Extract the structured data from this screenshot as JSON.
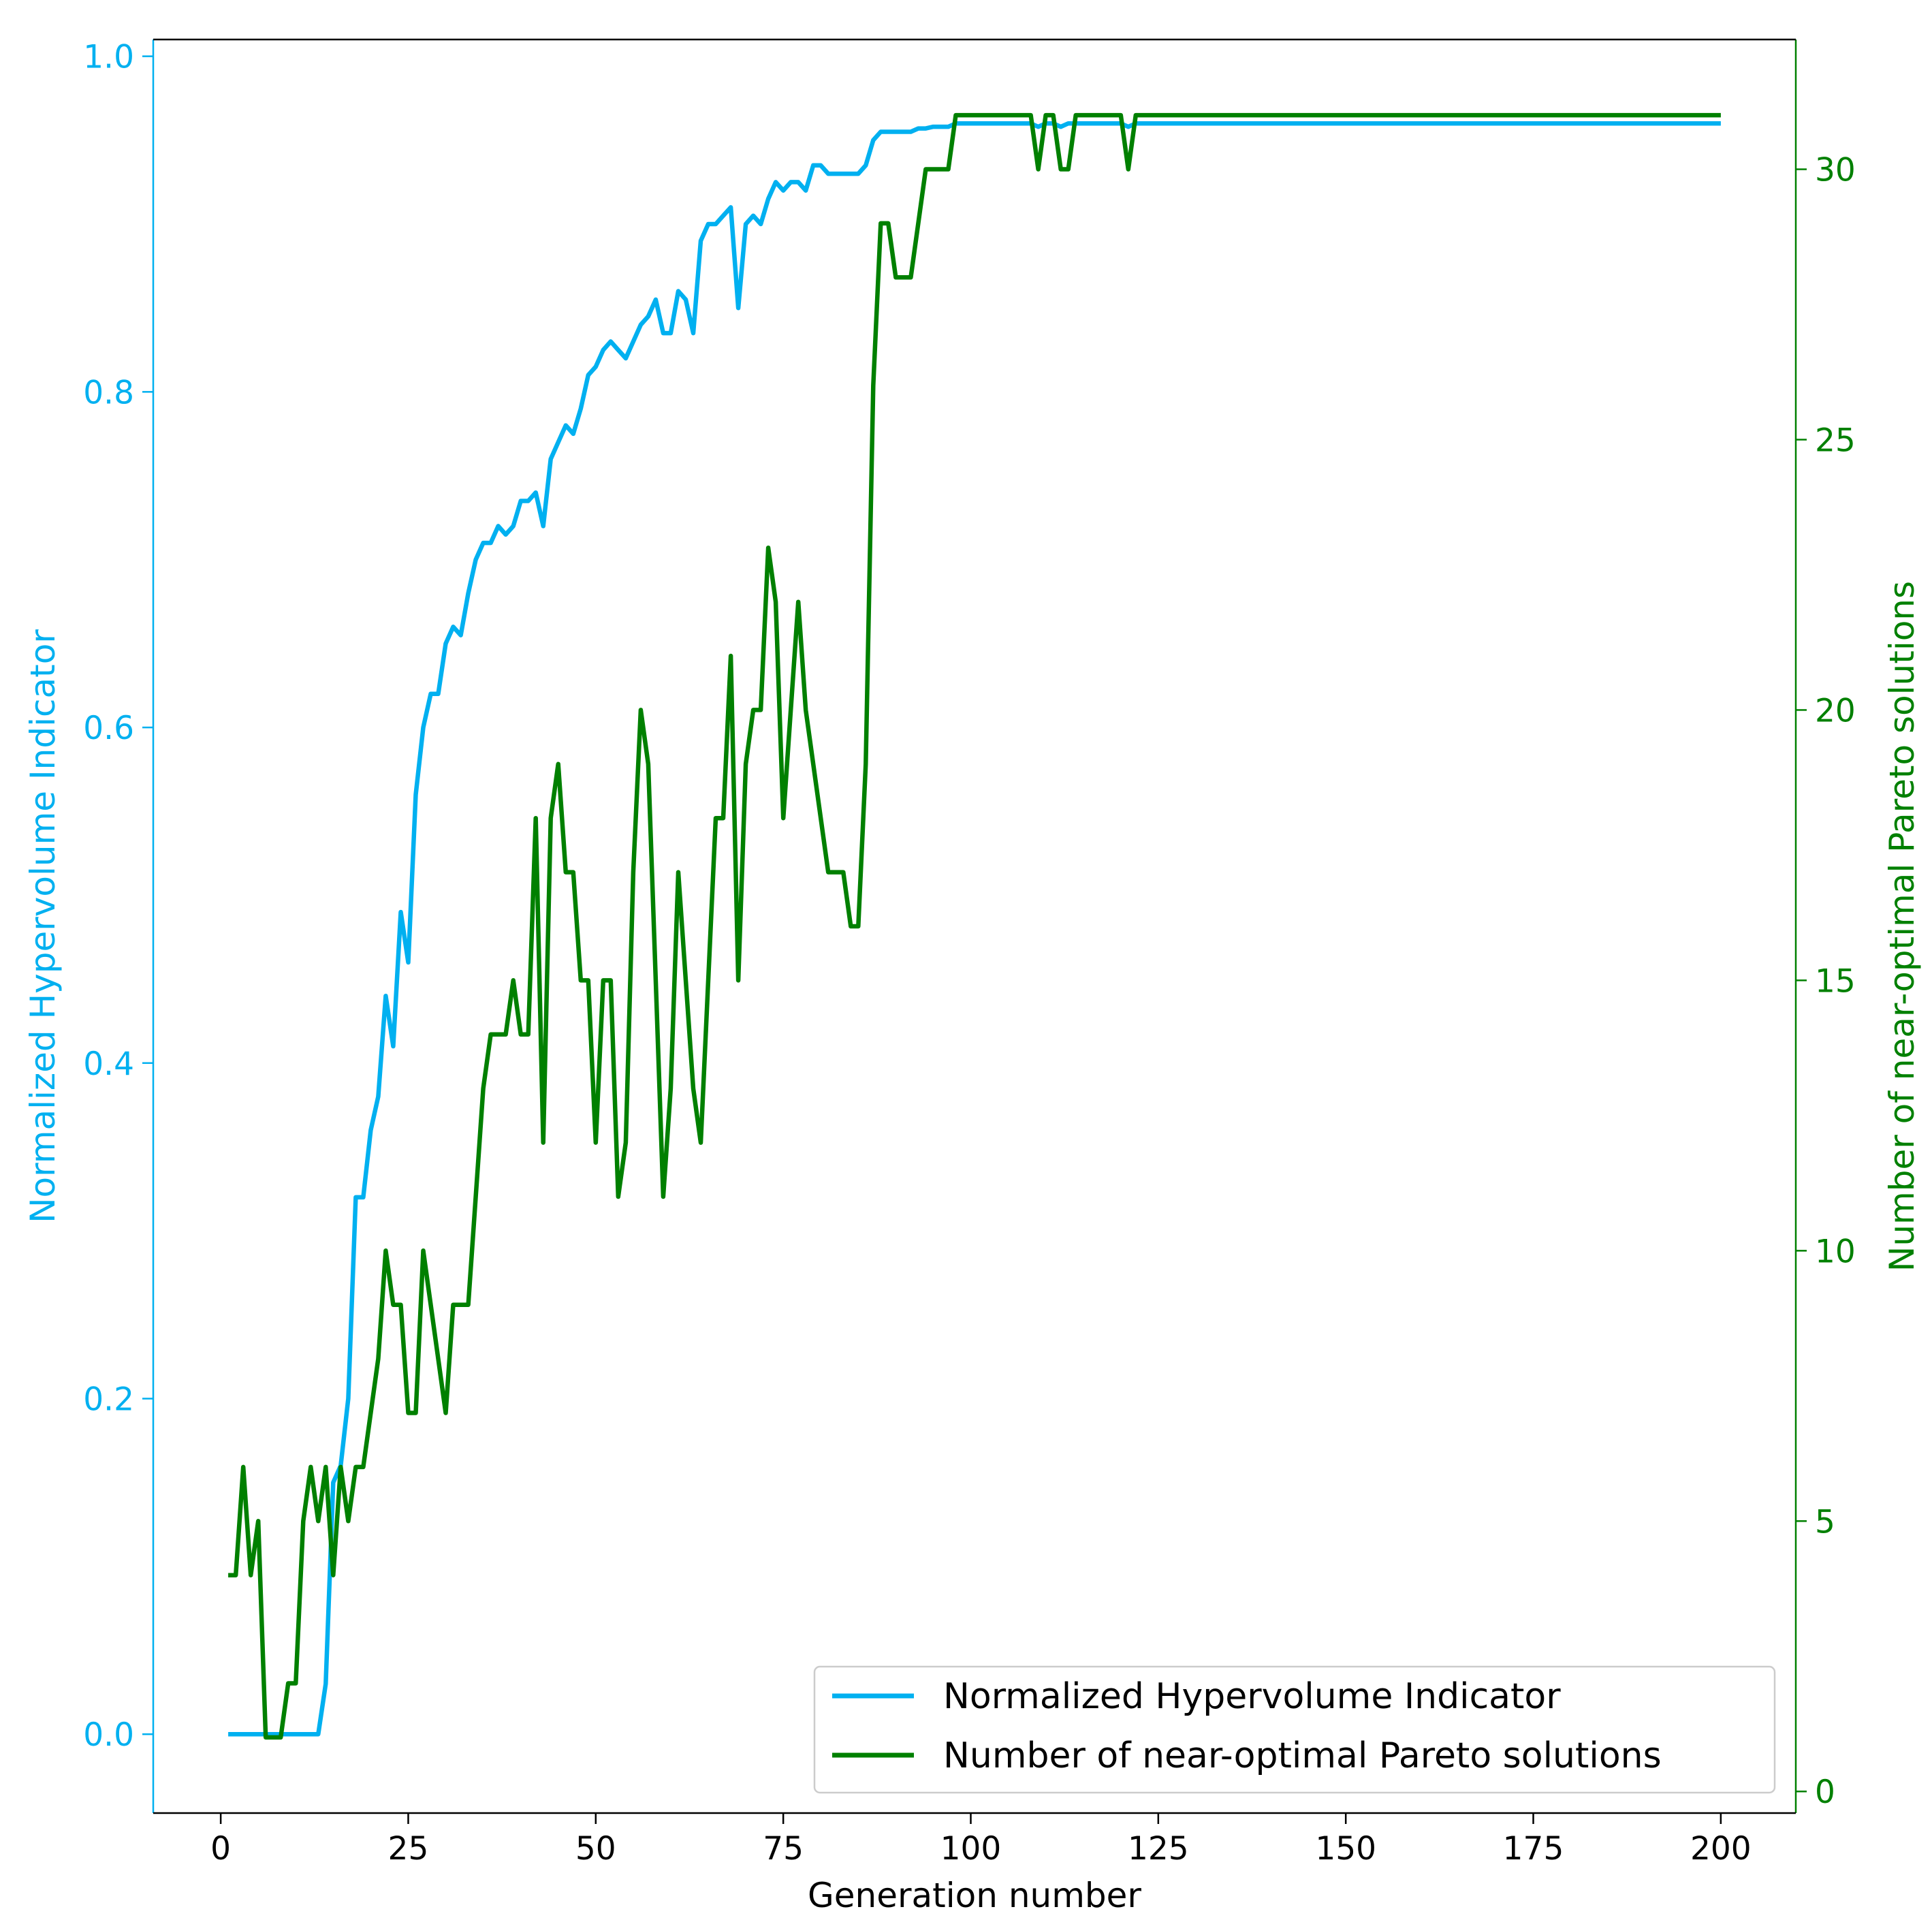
{
  "chart_data": {
    "type": "line",
    "xlabel": "Generation number",
    "ylabel_left": "Normalized Hypervolume Indicator",
    "ylabel_right": "Number of near-optimal Pareto solutions",
    "xlim": [
      -9,
      210
    ],
    "ylim_left": [
      -0.047,
      1.01
    ],
    "ylim_right": [
      -0.4,
      32.4
    ],
    "xticks": [
      0,
      25,
      50,
      75,
      100,
      125,
      150,
      175,
      200
    ],
    "yticks_left": [
      "0.0",
      "0.2",
      "0.4",
      "0.6",
      "0.8",
      "1.0"
    ],
    "yticks_left_values": [
      0.0,
      0.2,
      0.4,
      0.6,
      0.8,
      1.0
    ],
    "yticks_right": [
      "0",
      "5",
      "10",
      "15",
      "20",
      "25",
      "30"
    ],
    "yticks_right_values": [
      0,
      5,
      10,
      15,
      20,
      25,
      30
    ],
    "grid": false,
    "legend_position": "bottom-right",
    "series": [
      {
        "name": "Normalized Hypervolume Indicator",
        "axis": "left",
        "color": "#00b0f0",
        "points": [
          [
            1,
            0
          ],
          [
            13,
            0
          ],
          [
            14,
            0.03
          ],
          [
            15,
            0.15
          ],
          [
            16,
            0.16
          ],
          [
            17,
            0.2
          ],
          [
            18,
            0.32
          ],
          [
            19,
            0.32
          ],
          [
            20,
            0.36
          ],
          [
            21,
            0.38
          ],
          [
            22,
            0.44
          ],
          [
            23,
            0.41
          ],
          [
            24,
            0.49
          ],
          [
            25,
            0.46
          ],
          [
            26,
            0.56
          ],
          [
            27,
            0.6
          ],
          [
            28,
            0.62
          ],
          [
            29,
            0.62
          ],
          [
            30,
            0.65
          ],
          [
            31,
            0.66
          ],
          [
            32,
            0.655
          ],
          [
            33,
            0.68
          ],
          [
            34,
            0.7
          ],
          [
            35,
            0.71
          ],
          [
            36,
            0.71
          ],
          [
            37,
            0.72
          ],
          [
            38,
            0.715
          ],
          [
            39,
            0.72
          ],
          [
            40,
            0.735
          ],
          [
            41,
            0.735
          ],
          [
            42,
            0.74
          ],
          [
            43,
            0.72
          ],
          [
            44,
            0.76
          ],
          [
            45,
            0.77
          ],
          [
            46,
            0.78
          ],
          [
            47,
            0.775
          ],
          [
            48,
            0.79
          ],
          [
            49,
            0.81
          ],
          [
            50,
            0.815
          ],
          [
            51,
            0.825
          ],
          [
            52,
            0.83
          ],
          [
            53,
            0.825
          ],
          [
            54,
            0.82
          ],
          [
            55,
            0.83
          ],
          [
            56,
            0.84
          ],
          [
            57,
            0.845
          ],
          [
            58,
            0.855
          ],
          [
            59,
            0.835
          ],
          [
            60,
            0.835
          ],
          [
            61,
            0.86
          ],
          [
            62,
            0.855
          ],
          [
            63,
            0.835
          ],
          [
            64,
            0.89
          ],
          [
            65,
            0.9
          ],
          [
            66,
            0.9
          ],
          [
            67,
            0.905
          ],
          [
            68,
            0.91
          ],
          [
            69,
            0.85
          ],
          [
            70,
            0.9
          ],
          [
            71,
            0.905
          ],
          [
            72,
            0.9
          ],
          [
            73,
            0.915
          ],
          [
            74,
            0.925
          ],
          [
            75,
            0.92
          ],
          [
            76,
            0.925
          ],
          [
            77,
            0.925
          ],
          [
            78,
            0.92
          ],
          [
            79,
            0.935
          ],
          [
            80,
            0.935
          ],
          [
            81,
            0.93
          ],
          [
            82,
            0.93
          ],
          [
            83,
            0.93
          ],
          [
            84,
            0.93
          ],
          [
            85,
            0.93
          ],
          [
            86,
            0.935
          ],
          [
            87,
            0.95
          ],
          [
            88,
            0.955
          ],
          [
            89,
            0.955
          ],
          [
            90,
            0.955
          ],
          [
            91,
            0.955
          ],
          [
            92,
            0.955
          ],
          [
            93,
            0.957
          ],
          [
            94,
            0.957
          ],
          [
            95,
            0.958
          ],
          [
            96,
            0.958
          ],
          [
            97,
            0.958
          ],
          [
            98,
            0.96
          ],
          [
            108,
            0.96
          ],
          [
            109,
            0.958
          ],
          [
            110,
            0.96
          ],
          [
            111,
            0.96
          ],
          [
            112,
            0.958
          ],
          [
            113,
            0.96
          ],
          [
            120,
            0.96
          ],
          [
            121,
            0.958
          ],
          [
            122,
            0.96
          ],
          [
            200,
            0.96
          ]
        ]
      },
      {
        "name": "Number of near-optimal Pareto solutions",
        "axis": "right",
        "color": "#008000",
        "points": [
          [
            1,
            4
          ],
          [
            2,
            4
          ],
          [
            3,
            6
          ],
          [
            4,
            4
          ],
          [
            5,
            5
          ],
          [
            6,
            1
          ],
          [
            8,
            1
          ],
          [
            9,
            2
          ],
          [
            10,
            2
          ],
          [
            11,
            5
          ],
          [
            12,
            6
          ],
          [
            13,
            5
          ],
          [
            14,
            6
          ],
          [
            15,
            4
          ],
          [
            16,
            6
          ],
          [
            17,
            5
          ],
          [
            18,
            6
          ],
          [
            19,
            6
          ],
          [
            20,
            7
          ],
          [
            21,
            8
          ],
          [
            22,
            10
          ],
          [
            23,
            9
          ],
          [
            24,
            9
          ],
          [
            25,
            7
          ],
          [
            26,
            7
          ],
          [
            27,
            10
          ],
          [
            28,
            9
          ],
          [
            29,
            8
          ],
          [
            30,
            7
          ],
          [
            31,
            9
          ],
          [
            32,
            9
          ],
          [
            33,
            9
          ],
          [
            34,
            11
          ],
          [
            35,
            13
          ],
          [
            36,
            14
          ],
          [
            37,
            14
          ],
          [
            38,
            14
          ],
          [
            39,
            15
          ],
          [
            40,
            14
          ],
          [
            41,
            14
          ],
          [
            42,
            18
          ],
          [
            43,
            12
          ],
          [
            44,
            18
          ],
          [
            45,
            19
          ],
          [
            46,
            17
          ],
          [
            47,
            17
          ],
          [
            48,
            15
          ],
          [
            49,
            15
          ],
          [
            50,
            12
          ],
          [
            51,
            15
          ],
          [
            52,
            15
          ],
          [
            53,
            11
          ],
          [
            54,
            12
          ],
          [
            55,
            17
          ],
          [
            56,
            20
          ],
          [
            57,
            19
          ],
          [
            58,
            15
          ],
          [
            59,
            11
          ],
          [
            60,
            13
          ],
          [
            61,
            17
          ],
          [
            62,
            15
          ],
          [
            63,
            13
          ],
          [
            64,
            12
          ],
          [
            65,
            15
          ],
          [
            66,
            18
          ],
          [
            67,
            18
          ],
          [
            68,
            21
          ],
          [
            69,
            15
          ],
          [
            70,
            19
          ],
          [
            71,
            20
          ],
          [
            72,
            20
          ],
          [
            73,
            23
          ],
          [
            74,
            22
          ],
          [
            75,
            18
          ],
          [
            76,
            20
          ],
          [
            77,
            22
          ],
          [
            78,
            20
          ],
          [
            79,
            19
          ],
          [
            80,
            18
          ],
          [
            81,
            17
          ],
          [
            82,
            17
          ],
          [
            83,
            17
          ],
          [
            84,
            16
          ],
          [
            85,
            16
          ],
          [
            86,
            19
          ],
          [
            87,
            26
          ],
          [
            88,
            29
          ],
          [
            89,
            29
          ],
          [
            90,
            28
          ],
          [
            91,
            28
          ],
          [
            92,
            28
          ],
          [
            93,
            29
          ],
          [
            94,
            30
          ],
          [
            95,
            30
          ],
          [
            96,
            30
          ],
          [
            97,
            30
          ],
          [
            98,
            31
          ],
          [
            108,
            31
          ],
          [
            109,
            30
          ],
          [
            110,
            31
          ],
          [
            111,
            31
          ],
          [
            112,
            30
          ],
          [
            113,
            30
          ],
          [
            114,
            31
          ],
          [
            120,
            31
          ],
          [
            121,
            30
          ],
          [
            122,
            31
          ],
          [
            200,
            31
          ]
        ]
      }
    ]
  }
}
